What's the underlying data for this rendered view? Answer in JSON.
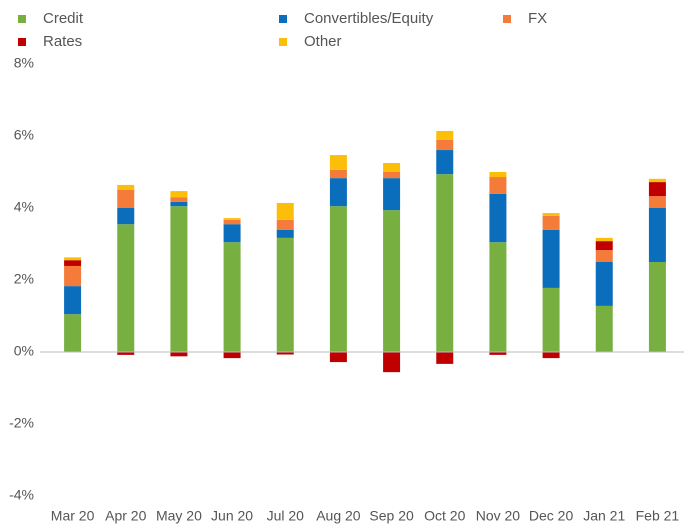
{
  "chart_data": {
    "type": "stacked_bar",
    "categories": [
      "Mar 20",
      "Apr 20",
      "May 20",
      "Jun 20",
      "Jul 20",
      "Aug 20",
      "Sep 20",
      "Oct 20",
      "Nov 20",
      "Dec 20",
      "Jan 21",
      "Feb 21"
    ],
    "series": [
      {
        "name": "Credit",
        "color": "#77b041",
        "values": [
          1.05,
          3.55,
          4.05,
          3.05,
          3.17,
          4.05,
          3.94,
          4.94,
          3.05,
          1.78,
          1.28,
          2.5
        ]
      },
      {
        "name": "Convertibles/Equity",
        "color": "#0a6ebd",
        "values": [
          0.78,
          0.45,
          0.12,
          0.5,
          0.22,
          0.78,
          0.89,
          0.67,
          1.34,
          1.61,
          1.22,
          1.5
        ]
      },
      {
        "name": "FX",
        "color": "#f47b3a",
        "values": [
          0.56,
          0.5,
          0.13,
          0.12,
          0.28,
          0.23,
          0.17,
          0.28,
          0.47,
          0.39,
          0.33,
          0.33
        ]
      },
      {
        "name": "Rates",
        "color": "#c00000",
        "values": [
          0.16,
          -0.08,
          -0.12,
          -0.17,
          -0.07,
          -0.28,
          -0.56,
          -0.33,
          -0.08,
          -0.17,
          0.25,
          0.39
        ]
      },
      {
        "name": "Other",
        "color": "#fbbf0a",
        "values": [
          0.08,
          0.14,
          0.17,
          0.05,
          0.47,
          0.41,
          0.25,
          0.25,
          0.14,
          0.08,
          0.09,
          0.09
        ]
      }
    ],
    "ylim": [
      -4,
      8
    ],
    "yticks": [
      {
        "value": -4,
        "label": "-4%"
      },
      {
        "value": -2,
        "label": "-2%"
      },
      {
        "value": 0,
        "label": "0%"
      },
      {
        "value": 2,
        "label": "2%"
      },
      {
        "value": 4,
        "label": "4%"
      },
      {
        "value": 6,
        "label": "6%"
      },
      {
        "value": 8,
        "label": "8%"
      }
    ],
    "legend": "top"
  }
}
